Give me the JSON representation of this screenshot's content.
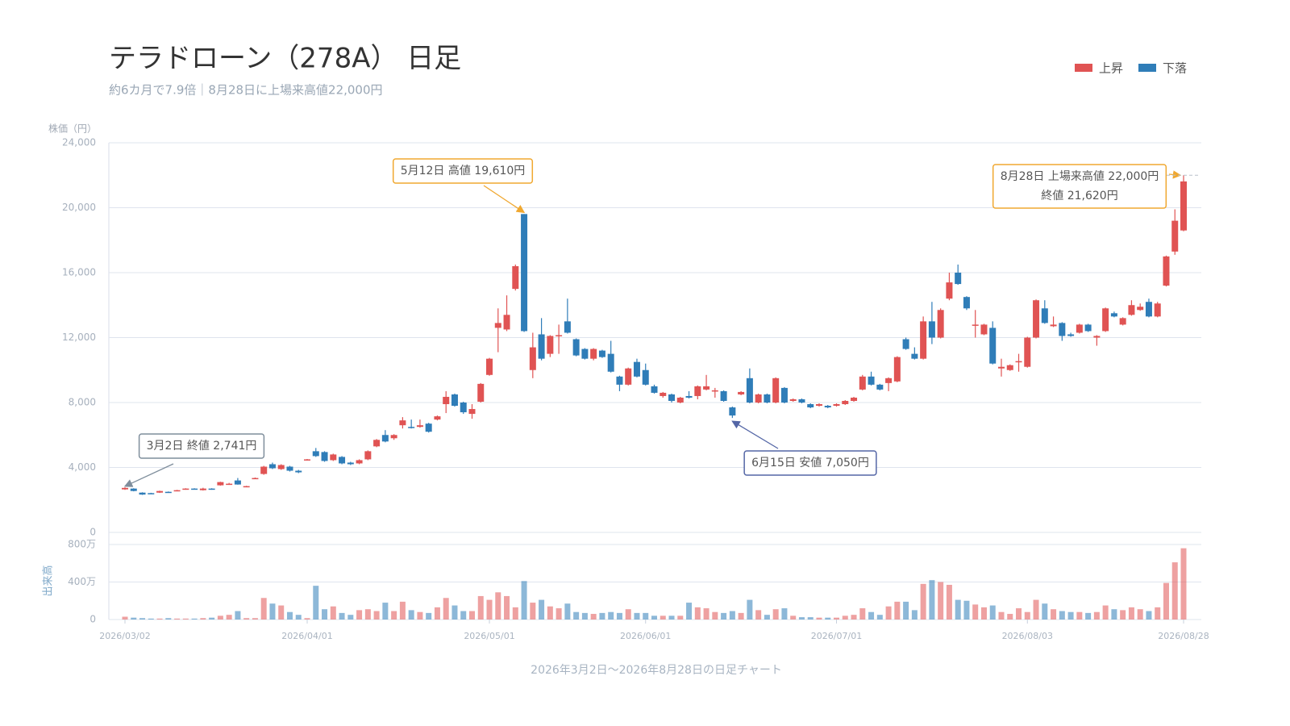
{
  "chart_data": {
    "type": "candlestick",
    "title": "テラドローン（278A） 日足",
    "subtitle": "約6カ月で7.9倍｜8月28日に上場来高値22,000円",
    "ylabel": "株価（円）",
    "y2label": "出来高",
    "footer": "2026年3月2日～2026年8月28日の日足チャート",
    "legend_position": "top-right",
    "grid": true,
    "series": [
      {
        "name": "上昇",
        "color": "#e05353"
      },
      {
        "name": "下落",
        "color": "#2f7db8"
      }
    ],
    "categories": [
      "2026/03/02",
      null,
      null,
      null,
      null,
      null,
      null,
      null,
      null,
      null,
      null,
      null,
      null,
      null,
      null,
      null,
      null,
      null,
      null,
      null,
      null,
      "2026/04/01",
      null,
      null,
      null,
      null,
      null,
      null,
      null,
      null,
      null,
      null,
      null,
      null,
      null,
      null,
      null,
      null,
      null,
      null,
      null,
      null,
      "2026/05/01",
      null,
      null,
      null,
      null,
      null,
      null,
      null,
      null,
      null,
      null,
      null,
      null,
      null,
      null,
      null,
      null,
      null,
      "2026/06/01",
      null,
      null,
      null,
      null,
      null,
      null,
      null,
      null,
      null,
      null,
      null,
      null,
      null,
      null,
      null,
      null,
      null,
      null,
      null,
      null,
      null,
      "2026/07/01",
      null,
      null,
      null,
      null,
      null,
      null,
      null,
      null,
      null,
      null,
      null,
      null,
      null,
      null,
      null,
      null,
      null,
      null,
      null,
      null,
      null,
      "2026/08/03",
      null,
      null,
      null,
      null,
      null,
      null,
      null,
      null,
      null,
      null,
      null,
      null,
      null,
      null,
      null,
      null,
      null,
      "2026/08/28"
    ],
    "open": [
      2650,
      2700,
      2450,
      2420,
      2450,
      2500,
      2550,
      2650,
      2700,
      2600,
      2700,
      2900,
      2950,
      3200,
      2800,
      3300,
      3600,
      4200,
      3900,
      4050,
      3800,
      4450,
      5000,
      4950,
      4450,
      4650,
      4300,
      4250,
      4500,
      5300,
      6000,
      5800,
      6600,
      6500,
      6500,
      6700,
      6950,
      7900,
      8500,
      8000,
      7300,
      8050,
      9700,
      12600,
      12500,
      15000,
      19610,
      10000,
      12200,
      11000,
      12100,
      13000,
      11900,
      11300,
      10700,
      11200,
      11000,
      9600,
      9100,
      10500,
      10000,
      9000,
      8400,
      8500,
      8000,
      8400,
      8400,
      8800,
      8700,
      8700,
      7700,
      8500,
      9500,
      8000,
      8500,
      8000,
      8900,
      8100,
      8200,
      7900,
      7800,
      7800,
      7800,
      7900,
      8100,
      8800,
      9600,
      9100,
      9200,
      9300,
      11900,
      11000,
      10700,
      13000,
      12000,
      14400,
      16000,
      14500,
      12750,
      12200,
      12600,
      10100,
      10000,
      10500,
      10200,
      12000,
      13800,
      12700,
      12900,
      12200,
      12300,
      12800,
      12000,
      12400,
      13500,
      12800,
      13400,
      13700,
      14200,
      13300,
      15200,
      17300,
      18600
    ],
    "high": [
      2780,
      2720,
      2470,
      2440,
      2570,
      2520,
      2620,
      2720,
      2720,
      2750,
      2720,
      3120,
      3050,
      3350,
      2870,
      3380,
      4100,
      4300,
      4200,
      4100,
      3850,
      4520,
      5200,
      5000,
      4850,
      4700,
      4350,
      4500,
      5050,
      5750,
      6300,
      6050,
      7100,
      6950,
      6950,
      6750,
      7200,
      8700,
      8550,
      8050,
      7900,
      9200,
      10750,
      13800,
      14600,
      16500,
      19610,
      12300,
      13200,
      12150,
      12800,
      14400,
      11950,
      11350,
      11350,
      11250,
      11800,
      9650,
      10150,
      10700,
      10400,
      9100,
      8650,
      8550,
      8350,
      8700,
      9050,
      9700,
      8900,
      8750,
      7750,
      8700,
      10100,
      8550,
      8550,
      9550,
      8950,
      8250,
      8250,
      7950,
      7950,
      7850,
      7950,
      8150,
      8350,
      9700,
      9900,
      9150,
      9550,
      10850,
      12000,
      11400,
      13300,
      14200,
      13800,
      16000,
      16500,
      14550,
      13700,
      12850,
      13000,
      10700,
      10350,
      11000,
      12050,
      14350,
      14300,
      13300,
      12950,
      12300,
      12850,
      12850,
      12150,
      13850,
      13600,
      13250,
      14300,
      14100,
      14400,
      14200,
      17050,
      19900,
      22000
    ],
    "low": [
      2620,
      2530,
      2310,
      2370,
      2430,
      2460,
      2530,
      2630,
      2640,
      2580,
      2630,
      2880,
      2930,
      2940,
      2780,
      3290,
      3550,
      3900,
      3850,
      3750,
      3650,
      4430,
      4650,
      4350,
      4400,
      4200,
      4150,
      4200,
      4450,
      5250,
      5550,
      5700,
      6400,
      6400,
      6450,
      6150,
      6900,
      7350,
      7750,
      7300,
      7000,
      8000,
      9650,
      11100,
      12400,
      14900,
      12350,
      9500,
      10600,
      10800,
      11000,
      12250,
      10850,
      10650,
      10600,
      10750,
      9850,
      8700,
      9050,
      9550,
      9050,
      8550,
      8300,
      8000,
      7950,
      8250,
      8200,
      8750,
      8300,
      8050,
      7050,
      8450,
      7950,
      7950,
      7950,
      7950,
      7950,
      8050,
      7950,
      7650,
      7750,
      7650,
      7750,
      7850,
      8050,
      8750,
      9050,
      8750,
      8700,
      9250,
      11250,
      10650,
      10650,
      11600,
      11950,
      14300,
      15250,
      13700,
      12000,
      12150,
      10350,
      9600,
      9950,
      9900,
      10150,
      11950,
      12850,
      12650,
      11800,
      12050,
      12250,
      12350,
      11500,
      12350,
      13250,
      12750,
      13350,
      13650,
      13250,
      13250,
      15150,
      17100,
      18550
    ],
    "close": [
      2741,
      2550,
      2330,
      2380,
      2550,
      2470,
      2600,
      2700,
      2650,
      2700,
      2640,
      3100,
      3000,
      2950,
      2850,
      3350,
      4050,
      3950,
      4150,
      3800,
      3700,
      4500,
      4700,
      4400,
      4800,
      4250,
      4200,
      4450,
      5000,
      5700,
      5600,
      6000,
      6900,
      6450,
      6600,
      6200,
      7150,
      8350,
      7800,
      7400,
      7600,
      9150,
      10700,
      12900,
      13400,
      16400,
      12400,
      11400,
      10700,
      12100,
      12150,
      12300,
      10900,
      10700,
      11300,
      10800,
      9900,
      9100,
      10100,
      9600,
      9100,
      8600,
      8600,
      8100,
      8300,
      8300,
      9000,
      9000,
      8750,
      8100,
      7200,
      8650,
      8000,
      8500,
      8000,
      9500,
      8000,
      8200,
      8000,
      7700,
      7900,
      7700,
      7900,
      8100,
      8300,
      9600,
      9100,
      8800,
      9500,
      10800,
      11300,
      10700,
      13000,
      12000,
      13700,
      15400,
      15300,
      13800,
      12800,
      12800,
      10400,
      10200,
      10300,
      10550,
      12000,
      14300,
      12900,
      12800,
      12100,
      12100,
      12800,
      12400,
      12100,
      13800,
      13300,
      13200,
      14000,
      13900,
      13300,
      14100,
      17000,
      19200,
      21620
    ],
    "volume": [
      30,
      20,
      15,
      10,
      10,
      15,
      10,
      10,
      10,
      15,
      20,
      40,
      50,
      90,
      15,
      15,
      230,
      170,
      150,
      80,
      50,
      15,
      360,
      110,
      140,
      70,
      50,
      100,
      110,
      90,
      180,
      90,
      190,
      100,
      80,
      70,
      130,
      230,
      150,
      90,
      90,
      250,
      210,
      290,
      250,
      130,
      410,
      180,
      210,
      140,
      120,
      170,
      80,
      70,
      60,
      70,
      80,
      70,
      110,
      70,
      70,
      40,
      40,
      40,
      40,
      180,
      130,
      120,
      80,
      70,
      90,
      70,
      210,
      100,
      50,
      110,
      120,
      40,
      25,
      25,
      20,
      20,
      20,
      40,
      50,
      120,
      80,
      50,
      140,
      190,
      190,
      100,
      380,
      420,
      400,
      370,
      210,
      200,
      160,
      130,
      150,
      80,
      60,
      120,
      80,
      210,
      170,
      110,
      90,
      80,
      80,
      70,
      80,
      150,
      110,
      100,
      130,
      110,
      90,
      130,
      390,
      610,
      760
    ],
    "ylim": [
      0,
      24000
    ],
    "yticks": [
      0,
      {
        "value": 4000,
        "label": "4,000"
      },
      {
        "value": 8000,
        "label": "8,000"
      },
      {
        "value": 12000,
        "label": "12,000"
      },
      {
        "value": 16000,
        "label": "16,000"
      },
      {
        "value": 20000,
        "label": "20,000"
      },
      {
        "value": 24000,
        "label": "24,000"
      }
    ],
    "y2lim": [
      0,
      800
    ],
    "y2ticks": [
      0,
      {
        "value": 400,
        "label": "400万"
      },
      {
        "value": 800,
        "label": "800万"
      }
    ],
    "annotations": [
      {
        "lines": [
          "3月2日 終値 2,741円"
        ],
        "value": 2741,
        "color": "#7f8e9c"
      },
      {
        "lines": [
          "5月12日 高値 19,610円"
        ],
        "value": 19610,
        "color": "#f0a830"
      },
      {
        "lines": [
          "6月15日 安値 7,050円"
        ],
        "value": 7050,
        "color": "#5466a6"
      },
      {
        "lines": [
          "8月28日 上場来高値 22,000円",
          "終値 21,620円"
        ],
        "value": 22000,
        "color": "#f0a830"
      }
    ]
  }
}
